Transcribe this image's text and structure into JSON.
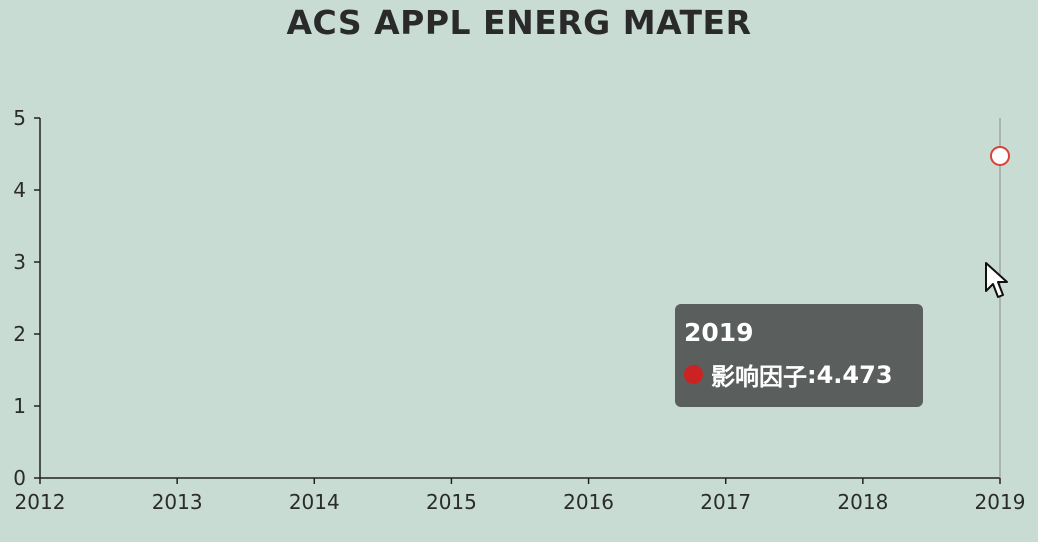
{
  "chart_data": {
    "type": "scatter",
    "title": "ACS APPL ENERG MATER",
    "x": [
      2019
    ],
    "xlim": [
      2012,
      2019
    ],
    "xticks": [
      "2012",
      "2013",
      "2014",
      "2015",
      "2016",
      "2017",
      "2018",
      "2019"
    ],
    "ylim": [
      0,
      5
    ],
    "yticks": [
      "0",
      "1",
      "2",
      "3",
      "4",
      "5"
    ],
    "series": [
      {
        "name": "影响因子",
        "values": [
          4.473
        ]
      }
    ],
    "grid": false,
    "marker_color": "#d9413a"
  },
  "tooltip": {
    "title": "2019",
    "series_label": "影响因子",
    "value_text": "4.473",
    "dot_color": "#cc2222"
  },
  "cursor": {
    "icon": "mouse-pointer-icon"
  }
}
